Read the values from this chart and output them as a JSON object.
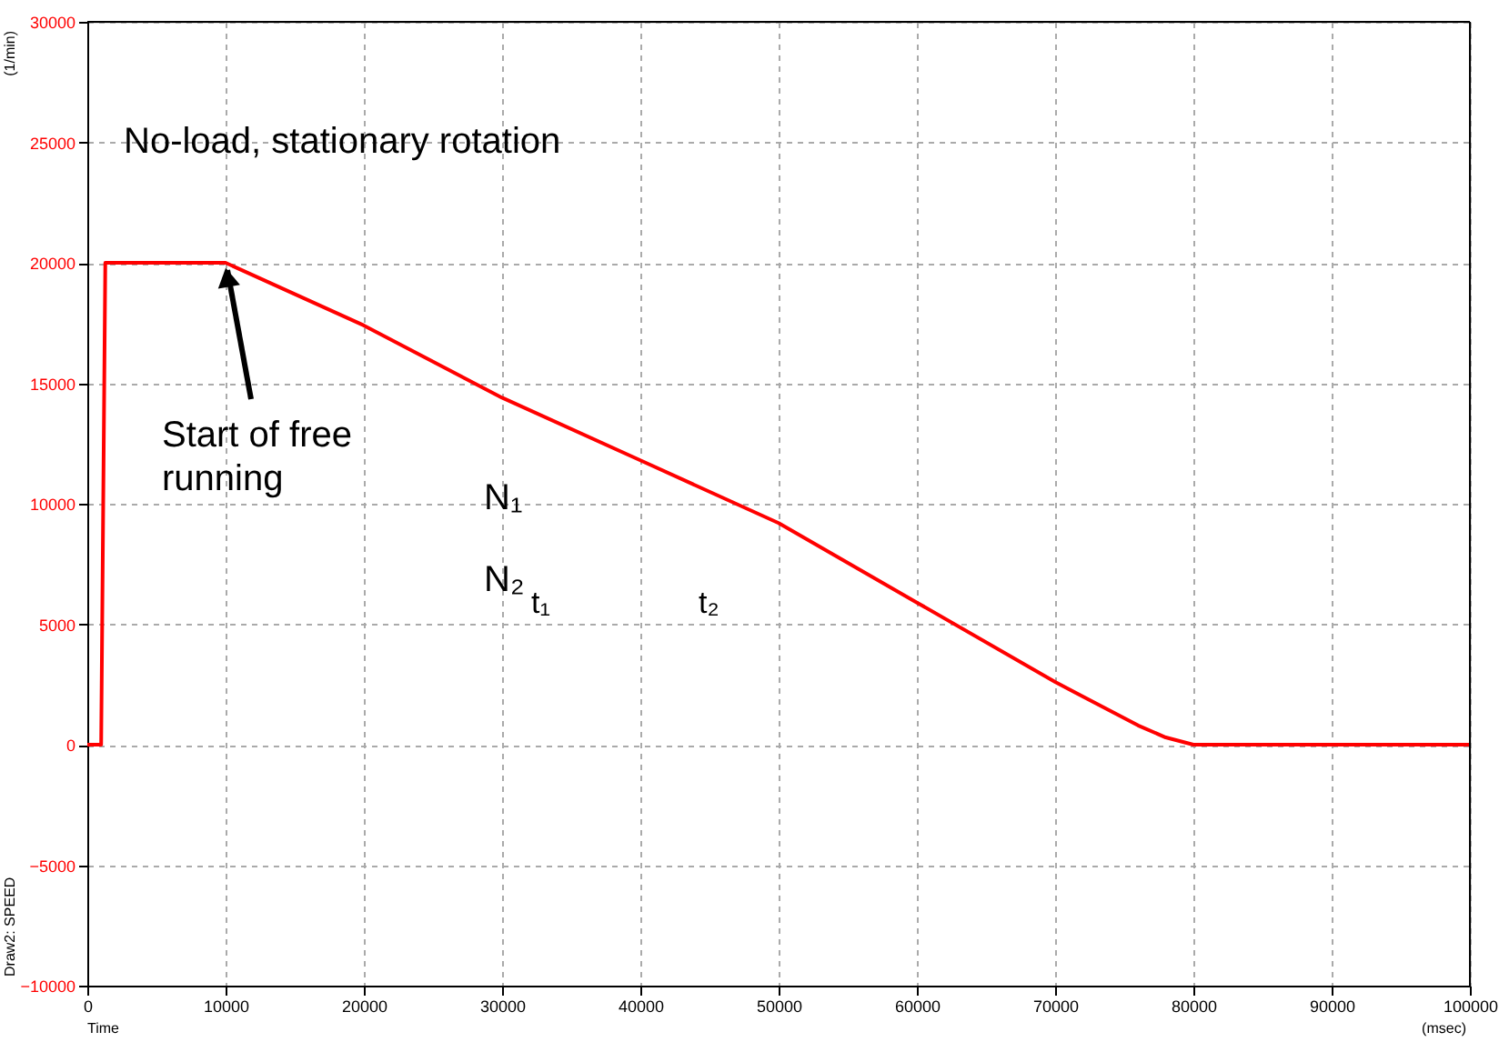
{
  "chart_data": {
    "type": "line",
    "x": [
      0,
      1000,
      1300,
      1600,
      10000,
      20000,
      30000,
      40000,
      50000,
      60000,
      70000,
      76000,
      78000,
      80000,
      90000,
      100000
    ],
    "series": [
      {
        "color": "#ff0000",
        "values": [
          0,
          0,
          20000,
          20000,
          20000,
          17400,
          14400,
          11800,
          9200,
          5900,
          2600,
          800,
          300,
          0,
          0,
          0
        ]
      }
    ],
    "xlim": [
      0,
      100000
    ],
    "xticks": [
      0,
      10000,
      20000,
      30000,
      40000,
      50000,
      60000,
      70000,
      80000,
      90000,
      100000
    ],
    "ylim": [
      -10000,
      30000
    ],
    "yticks": [
      -10000,
      -5000,
      0,
      5000,
      10000,
      15000,
      20000,
      25000,
      30000
    ],
    "xlabel": "Time",
    "ylabel": "(1/min)",
    "grid": true,
    "legend": false,
    "marker": "none",
    "line_style": "solid",
    "annotations": [
      "No-load, stationary rotation",
      {
        "text": "Start of free running",
        "x": 10000,
        "y": 20000
      },
      "N₁",
      "N₂",
      "t₁",
      "t₂",
      "(msec)",
      "Draw2: SPEED"
    ]
  }
}
